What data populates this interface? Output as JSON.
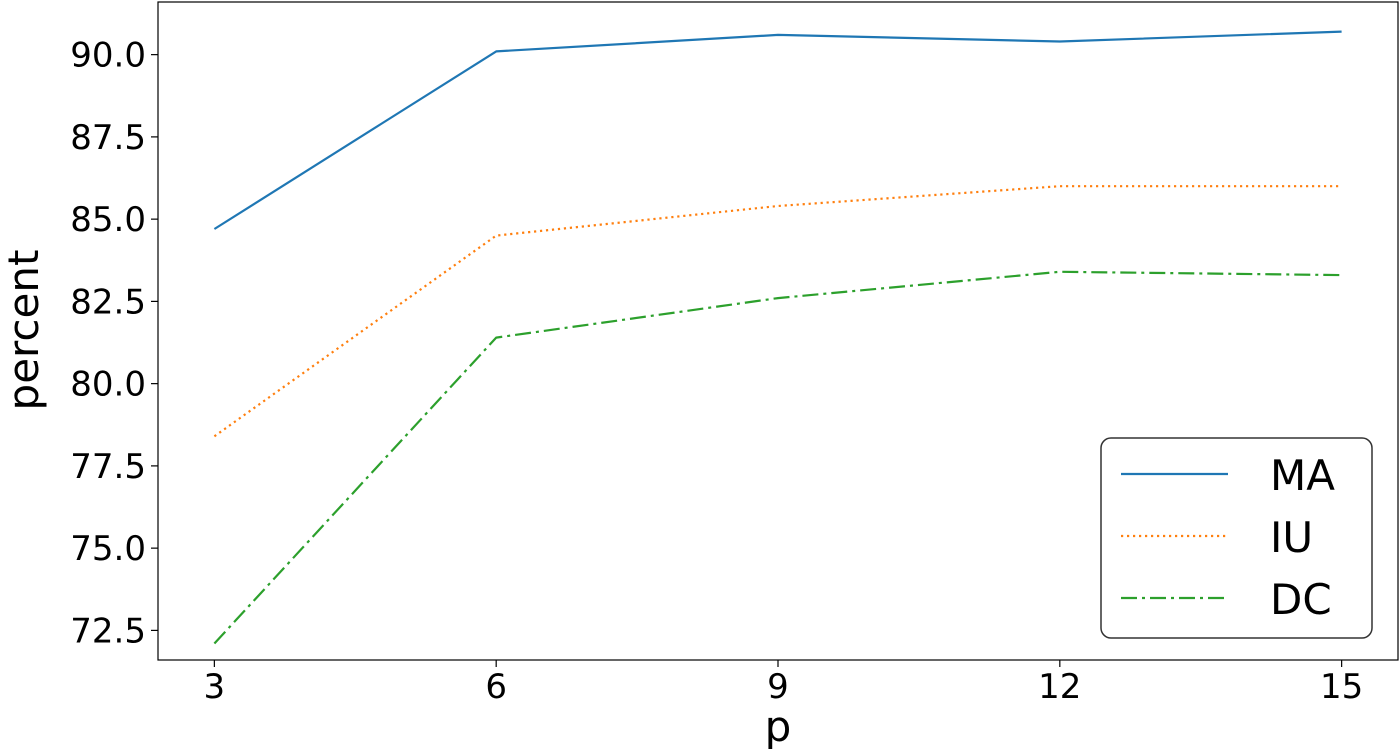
{
  "chart_data": {
    "type": "line",
    "title": "",
    "xlabel": "p",
    "ylabel": "percent",
    "x": [
      3,
      6,
      9,
      12,
      15
    ],
    "xticks": [
      "3",
      "6",
      "9",
      "12",
      "15"
    ],
    "yticks": [
      "72.5",
      "75.0",
      "77.5",
      "80.0",
      "82.5",
      "85.0",
      "87.5",
      "90.0"
    ],
    "xlim": [
      2.4,
      15.6
    ],
    "ylim": [
      71.6,
      91.6
    ],
    "grid": false,
    "legend_position": "lower-right",
    "series": [
      {
        "name": "MA",
        "color": "#1f77b4",
        "style": "solid",
        "values": [
          84.7,
          90.1,
          90.6,
          90.4,
          90.7
        ]
      },
      {
        "name": "IU",
        "color": "#ff7f0e",
        "style": "dotted",
        "values": [
          78.4,
          84.5,
          85.4,
          86.0,
          86.0
        ]
      },
      {
        "name": "DC",
        "color": "#2ca02c",
        "style": "dashdot",
        "values": [
          72.1,
          81.4,
          82.6,
          83.4,
          83.3
        ]
      }
    ]
  }
}
